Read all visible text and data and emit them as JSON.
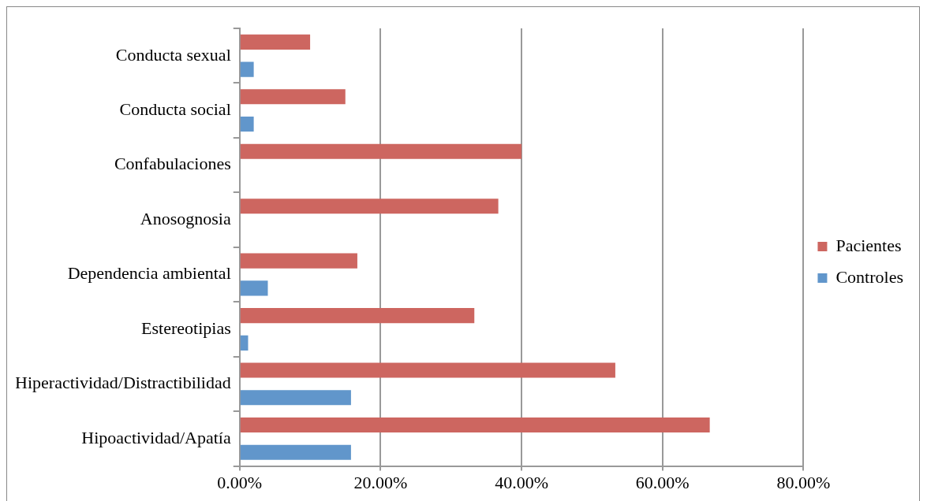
{
  "chart_data": {
    "type": "bar",
    "orientation": "horizontal",
    "categories": [
      "Conducta sexual",
      "Conducta social",
      "Confabulaciones",
      "Anosognosia",
      "Dependencia ambiental",
      "Estereotipias",
      "Hiperactividad/Distractibilidad",
      "Hipoactividad/Apatía"
    ],
    "series": [
      {
        "name": "Pacientes",
        "color": "#cd6660",
        "values": [
          10,
          15,
          40,
          36.7,
          16.7,
          33.3,
          53.3,
          66.7
        ]
      },
      {
        "name": "Controles",
        "color": "#6196cb",
        "values": [
          2,
          2,
          0,
          0,
          4,
          1.2,
          15.8,
          15.8
        ]
      }
    ],
    "xlim": [
      0,
      80
    ],
    "xticks": [
      {
        "value": 0,
        "label": "0.00%"
      },
      {
        "value": 20,
        "label": "20.00%"
      },
      {
        "value": 40,
        "label": "40.00%"
      },
      {
        "value": 60,
        "label": "60.00%"
      },
      {
        "value": 80,
        "label": "80.00%"
      }
    ],
    "grid": "x",
    "legend": "right"
  }
}
